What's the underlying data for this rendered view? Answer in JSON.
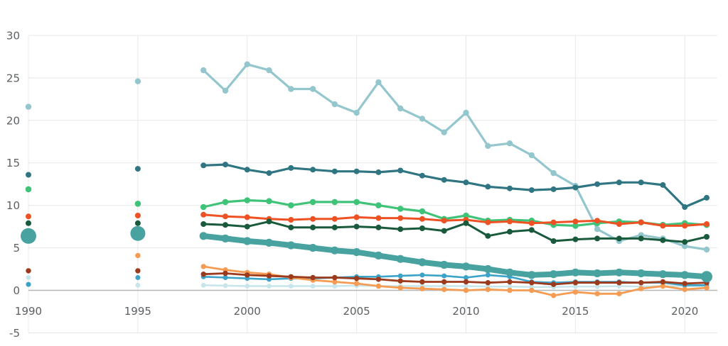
{
  "page": {
    "background": "#ffffff",
    "grid_color": "#e8e8e8",
    "zero_axis_color": "#b5b6b7",
    "bottom_line_color": "#e2e2e2",
    "tick_label_color": "#5c6063"
  },
  "chart_data": {
    "type": "line",
    "title": "",
    "xlabel": "",
    "ylabel": "",
    "legend": "none",
    "grid": true,
    "ylim": [
      -5,
      30
    ],
    "xlim": [
      1990,
      2021.5
    ],
    "y_ticks": [
      30,
      25,
      20,
      15,
      10,
      5,
      0,
      -5
    ],
    "x_ticks": [
      1990,
      1995,
      2000,
      2005,
      2010,
      2015,
      2020
    ],
    "x": [
      1990,
      1995,
      1998,
      1999,
      2000,
      2001,
      2002,
      2003,
      2004,
      2005,
      2006,
      2007,
      2008,
      2009,
      2010,
      2011,
      2012,
      2013,
      2014,
      2015,
      2016,
      2017,
      2018,
      2019,
      2020,
      2021
    ],
    "line_start_index": 2,
    "note": "Points at 1990 and 1995 are isolated scatter markers; lines connect 1998-2021 only.",
    "series": [
      {
        "name": "pale-cyan",
        "color": "#c7e5ea",
        "width": 2.5,
        "r": 3.4,
        "values": [
          1.5,
          0.6,
          0.6,
          0.55,
          0.5,
          0.5,
          0.5,
          0.5,
          0.5,
          0.55,
          0.5,
          0.5,
          0.5,
          0.5,
          0.5,
          0.45,
          0.45,
          0.4,
          0.4,
          0.45,
          0.45,
          0.5,
          0.45,
          0.5,
          0.5,
          0.5
        ]
      },
      {
        "name": "blue",
        "color": "#3ba3c8",
        "width": 2.6,
        "r": 3.5,
        "values": [
          0.7,
          1.5,
          1.6,
          1.5,
          1.4,
          1.3,
          1.4,
          1.4,
          1.5,
          1.6,
          1.6,
          1.7,
          1.8,
          1.7,
          1.5,
          1.8,
          1.6,
          1.0,
          0.9,
          1.0,
          1.0,
          1.0,
          0.9,
          0.9,
          0.6,
          0.6
        ]
      },
      {
        "name": "light-orange",
        "color": "#f59b52",
        "width": 2.8,
        "r": 3.7,
        "values": [
          null,
          4.1,
          2.8,
          2.4,
          2.1,
          1.9,
          1.5,
          1.2,
          1.0,
          0.8,
          0.5,
          0.3,
          0.2,
          0.1,
          0.0,
          0.1,
          0.0,
          0.0,
          -0.6,
          -0.2,
          -0.4,
          -0.4,
          0.2,
          0.5,
          0.1,
          0.3
        ]
      },
      {
        "name": "dark-red",
        "color": "#9c3a1d",
        "width": 2.8,
        "r": 3.7,
        "values": [
          2.3,
          2.3,
          1.9,
          2.0,
          1.8,
          1.7,
          1.6,
          1.5,
          1.5,
          1.4,
          1.3,
          1.1,
          1.0,
          1.0,
          1.0,
          0.9,
          1.0,
          0.9,
          0.7,
          0.9,
          0.9,
          0.9,
          0.9,
          1.0,
          0.8,
          0.9
        ]
      },
      {
        "name": "light-teal",
        "color": "#93c6cd",
        "width": 3.2,
        "r": 4.2,
        "values": [
          21.6,
          24.6,
          25.9,
          23.5,
          26.6,
          25.9,
          23.7,
          23.7,
          21.9,
          20.9,
          24.5,
          21.4,
          20.2,
          18.6,
          20.9,
          17.0,
          17.3,
          15.9,
          13.8,
          12.3,
          7.2,
          5.8,
          6.5,
          6.1,
          5.2,
          4.8
        ]
      },
      {
        "name": "green",
        "color": "#3fc378",
        "width": 3.2,
        "r": 4.3,
        "values": [
          11.9,
          10.2,
          9.8,
          10.4,
          10.6,
          10.5,
          10.0,
          10.4,
          10.4,
          10.4,
          10.0,
          9.6,
          9.3,
          8.4,
          8.8,
          8.2,
          8.3,
          8.2,
          7.7,
          7.6,
          7.9,
          8.1,
          8.0,
          7.7,
          7.9,
          7.7
        ]
      },
      {
        "name": "orange",
        "color": "#ee5123",
        "width": 3.0,
        "r": 4.0,
        "values": [
          8.7,
          8.8,
          8.9,
          8.7,
          8.6,
          8.4,
          8.3,
          8.4,
          8.4,
          8.6,
          8.5,
          8.5,
          8.4,
          8.2,
          8.3,
          8.0,
          8.1,
          7.9,
          8.0,
          8.1,
          8.2,
          7.8,
          8.0,
          7.6,
          7.6,
          7.8
        ]
      },
      {
        "name": "dark-green",
        "color": "#1a5a3c",
        "width": 3.0,
        "r": 4.0,
        "values": [
          7.9,
          7.9,
          7.8,
          7.7,
          7.5,
          8.1,
          7.4,
          7.4,
          7.4,
          7.5,
          7.4,
          7.2,
          7.3,
          7.0,
          7.9,
          6.4,
          6.9,
          7.1,
          5.8,
          6.0,
          6.1,
          6.1,
          6.1,
          5.9,
          5.7,
          6.3
        ]
      },
      {
        "name": "dark-teal",
        "color": "#2f7582",
        "width": 3.2,
        "r": 4.0,
        "values": [
          13.6,
          14.3,
          14.7,
          14.8,
          14.2,
          13.8,
          14.4,
          14.2,
          14.0,
          14.0,
          13.9,
          14.1,
          13.5,
          13.0,
          12.7,
          12.2,
          12.0,
          11.8,
          11.9,
          12.1,
          12.5,
          12.7,
          12.7,
          12.4,
          9.8,
          10.9
        ]
      },
      {
        "name": "thick-teal",
        "color": "#47a2a0",
        "width": 8.0,
        "r": 5.6,
        "r_1990": 11.0,
        "r_1995": 10.5,
        "r_end": 8.0,
        "values": [
          6.4,
          6.7,
          6.4,
          6.1,
          5.8,
          5.6,
          5.3,
          5.0,
          4.7,
          4.5,
          4.1,
          3.7,
          3.3,
          3.0,
          2.8,
          2.5,
          2.1,
          1.8,
          1.9,
          2.1,
          2.0,
          2.1,
          2.0,
          1.9,
          1.8,
          1.6
        ]
      }
    ]
  }
}
